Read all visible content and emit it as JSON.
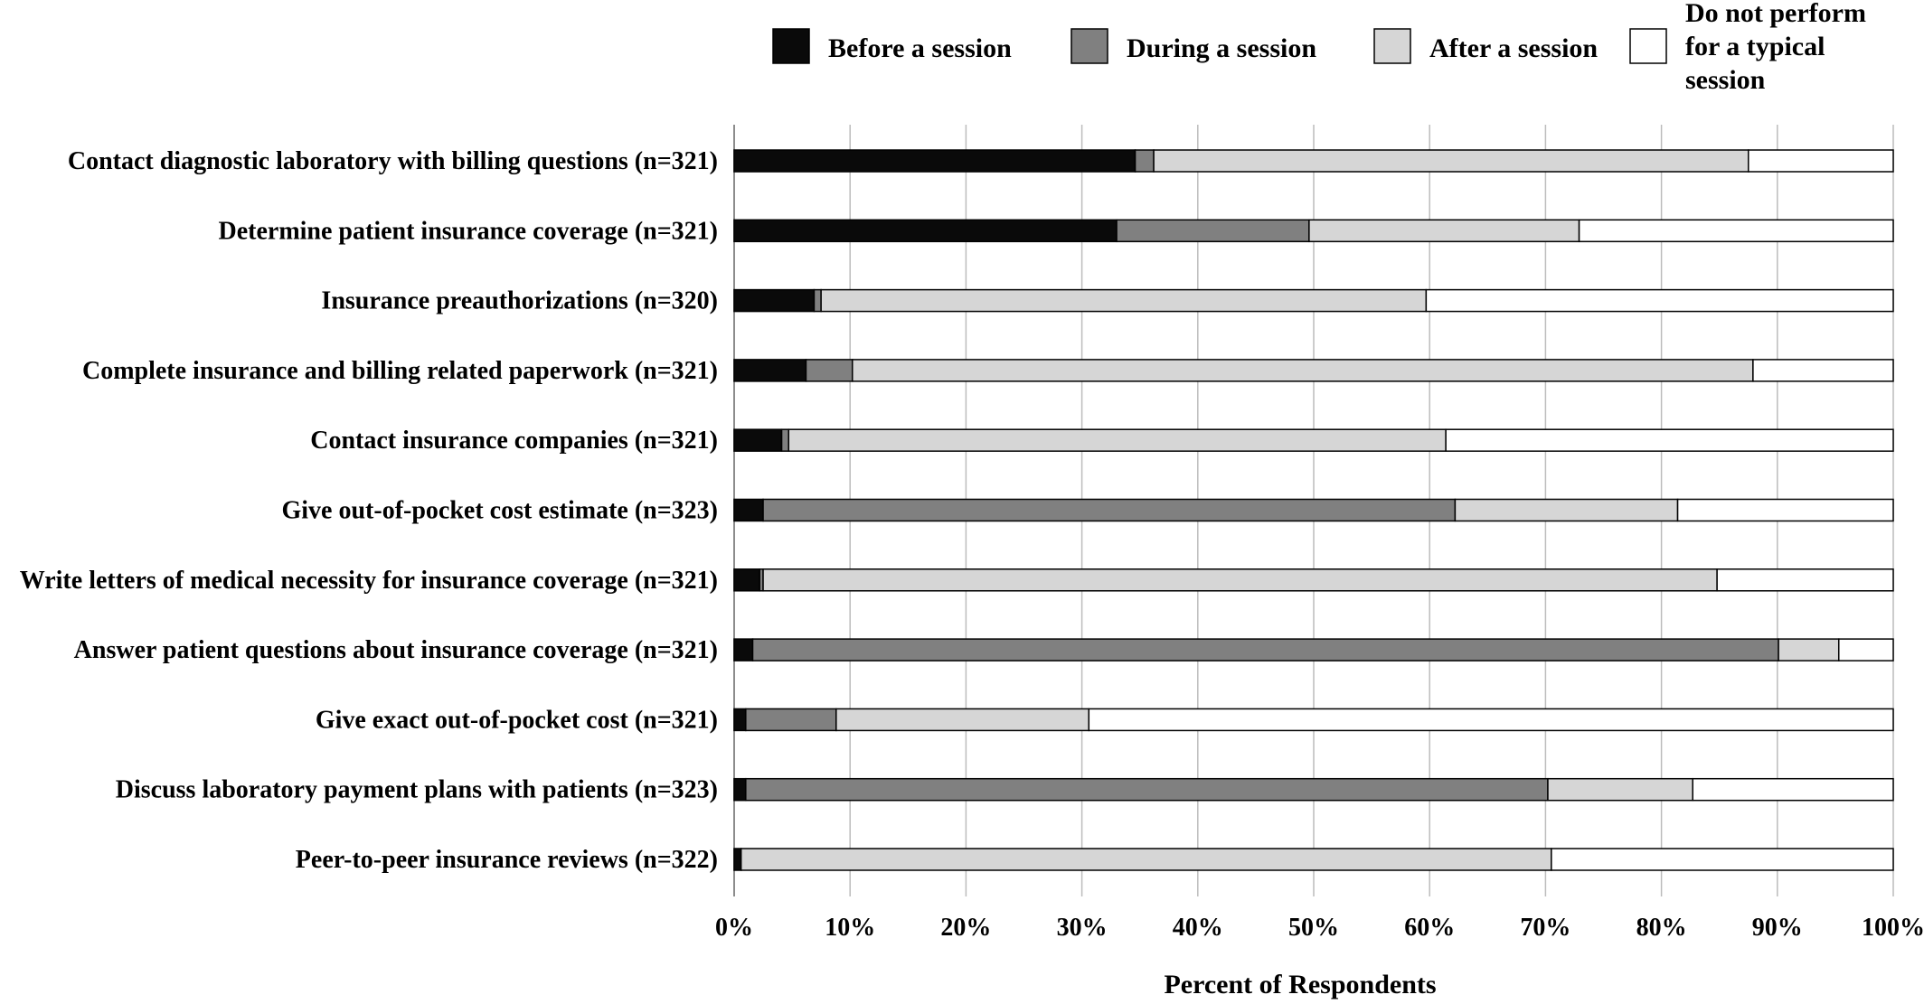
{
  "chart_data": {
    "type": "bar",
    "orientation": "horizontal",
    "stacked": true,
    "categories": [
      "Contact diagnostic laboratory with billing questions (n=321)",
      "Determine patient insurance coverage (n=321)",
      "Insurance preauthorizations (n=320)",
      "Complete insurance and billing related  paperwork (n=321)",
      "Contact insurance companies (n=321)",
      "Give out-of-pocket cost estimate (n=323)",
      "Write letters of medical necessity for insurance coverage (n=321)",
      "Answer patient questions about insurance coverage (n=321)",
      "Give exact out-of-pocket cost (n=321)",
      "Discuss laboratory payment plans with patients (n=323)",
      "Peer-to-peer insurance reviews (n=322)"
    ],
    "series": [
      {
        "name": "Before a session",
        "color": "#0a0a0a",
        "values": [
          34.6,
          33.0,
          6.9,
          6.2,
          4.1,
          2.5,
          2.2,
          1.6,
          1.0,
          1.0,
          0.6
        ]
      },
      {
        "name": "During a session",
        "color": "#808080",
        "values": [
          1.6,
          16.6,
          0.6,
          4.0,
          0.6,
          59.7,
          0.3,
          88.5,
          7.8,
          69.2,
          0.0
        ]
      },
      {
        "name": "After a session",
        "color": "#d6d6d6",
        "values": [
          51.3,
          23.3,
          52.2,
          77.7,
          56.7,
          19.2,
          82.3,
          5.2,
          21.8,
          12.5,
          69.9
        ]
      },
      {
        "name": "Do not perform\nfor a typical\nsession",
        "color": "#ffffff",
        "values": [
          12.5,
          27.1,
          40.3,
          12.1,
          38.6,
          18.6,
          15.2,
          4.7,
          69.4,
          17.3,
          29.5
        ]
      }
    ],
    "xlim": [
      0,
      100
    ],
    "x_ticks": [
      "0%",
      "10%",
      "20%",
      "30%",
      "40%",
      "50%",
      "60%",
      "70%",
      "80%",
      "90%",
      "100%"
    ],
    "xlabel": "Percent of Respondents",
    "ylabel": "",
    "title": "",
    "grid": "vertical",
    "legend_position": "top"
  }
}
